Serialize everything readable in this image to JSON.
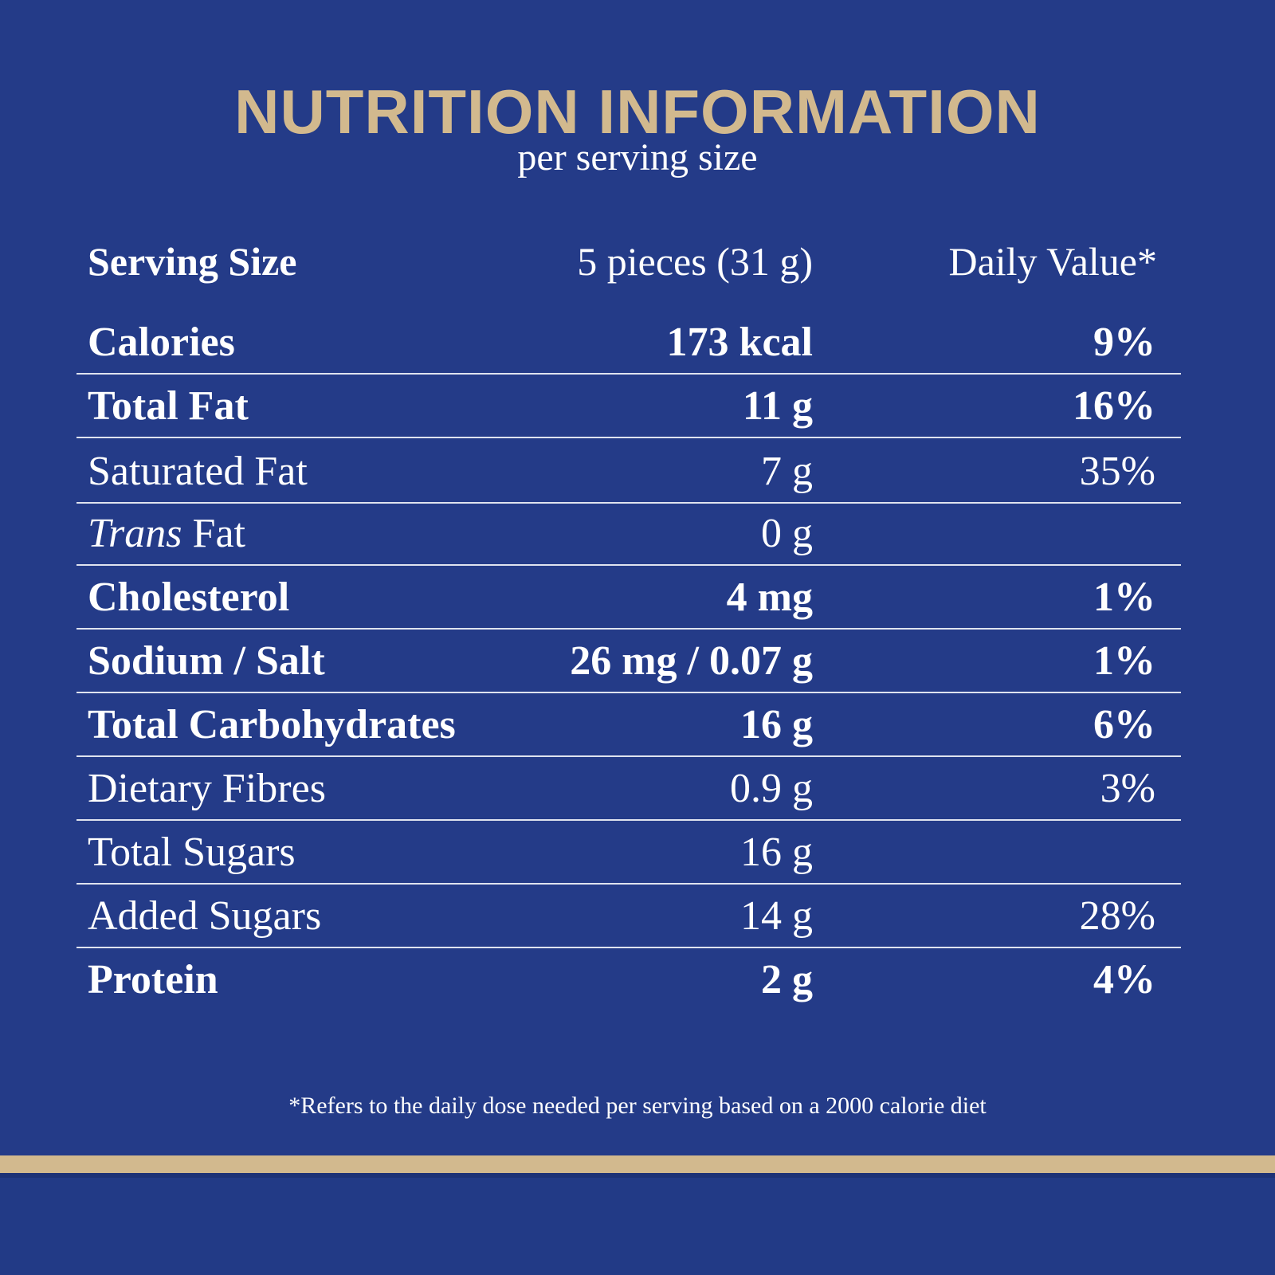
{
  "title": "NUTRITION INFORMATION",
  "subtitle": "per serving size",
  "header": {
    "label": "Serving Size",
    "amount": "5 pieces (31 g)",
    "daily_value": "Daily Value*"
  },
  "rows": [
    {
      "name": "Calories",
      "amount": "173 kcal",
      "dv": "9%",
      "bold": true
    },
    {
      "name": "Total Fat",
      "amount": "11 g",
      "dv": "16%",
      "bold": true
    },
    {
      "name": "Saturated Fat",
      "amount": "7 g",
      "dv": "35%",
      "bold": false
    },
    {
      "name_italic": "Trans",
      "name": " Fat",
      "amount": "0 g",
      "dv": "",
      "bold": false
    },
    {
      "name": "Cholesterol",
      "amount": "4 mg",
      "dv": "1%",
      "bold": true
    },
    {
      "name": "Sodium / Salt",
      "amount": "26 mg / 0.07 g",
      "dv": "1%",
      "bold": true
    },
    {
      "name": "Total Carbohydrates",
      "amount": "16 g",
      "dv": "6%",
      "bold": true
    },
    {
      "name": "Dietary Fibres",
      "amount": "0.9 g",
      "dv": "3%",
      "bold": false
    },
    {
      "name": "Total Sugars",
      "amount": "16 g",
      "dv": "",
      "bold": false
    },
    {
      "name": "Added Sugars",
      "amount": "14 g",
      "dv": "28%",
      "bold": false
    },
    {
      "name": "Protein",
      "amount": "2 g",
      "dv": "4%",
      "bold": true
    }
  ],
  "footnote": "*Refers to the daily dose needed per serving based on a 2000 calorie diet",
  "colors": {
    "background": "#243b88",
    "accent_gold": "#d2b98e",
    "text": "#ffffff",
    "divider": "#dfe3ef"
  }
}
